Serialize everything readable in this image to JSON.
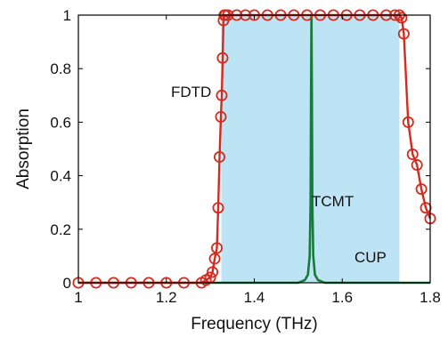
{
  "chart_data": {
    "type": "line",
    "xlabel": "Frequency (THz)",
    "ylabel": "Absorption",
    "xlim": [
      1.0,
      1.8
    ],
    "ylim": [
      0,
      1
    ],
    "x_ticks": [
      "1",
      "1.2",
      "1.4",
      "1.6",
      "1.8"
    ],
    "y_ticks": [
      "0",
      "0.2",
      "0.4",
      "0.6",
      "0.8",
      "1"
    ],
    "grid": false,
    "shaded_region": {
      "label": "CUP",
      "x_range": [
        1.325,
        1.73
      ],
      "color": "#bde4f4"
    },
    "annotations": {
      "fdtd": "FDTD",
      "tcmt": "TCMT",
      "cup": "CUP"
    },
    "series": [
      {
        "name": "FDTD",
        "style": "line+circle-markers",
        "color": "#d42a1f",
        "x": [
          1.0,
          1.04,
          1.08,
          1.12,
          1.16,
          1.2,
          1.24,
          1.28,
          1.29,
          1.3,
          1.305,
          1.31,
          1.315,
          1.318,
          1.321,
          1.324,
          1.326,
          1.328,
          1.33,
          1.332,
          1.334,
          1.34,
          1.36,
          1.38,
          1.4,
          1.43,
          1.46,
          1.49,
          1.52,
          1.55,
          1.58,
          1.61,
          1.64,
          1.67,
          1.7,
          1.72,
          1.73,
          1.735,
          1.74,
          1.75,
          1.76,
          1.77,
          1.78,
          1.79,
          1.8
        ],
        "y": [
          0.0,
          0.0,
          0.0,
          0.0,
          0.0,
          0.0,
          0.0,
          0.0,
          0.01,
          0.02,
          0.04,
          0.09,
          0.13,
          0.28,
          0.47,
          0.62,
          0.7,
          0.84,
          0.98,
          1.0,
          1.0,
          1.0,
          1.0,
          1.0,
          1.0,
          1.0,
          1.0,
          1.0,
          1.0,
          1.0,
          1.0,
          1.0,
          1.0,
          1.0,
          1.0,
          1.0,
          1.0,
          0.99,
          0.93,
          0.6,
          0.48,
          0.44,
          0.35,
          0.28,
          0.24
        ]
      },
      {
        "name": "TCMT",
        "style": "line",
        "color": "#157a3a",
        "x": [
          1.0,
          1.3,
          1.5,
          1.515,
          1.522,
          1.526,
          1.528,
          1.529,
          1.53,
          1.531,
          1.532,
          1.534,
          1.538,
          1.545,
          1.56,
          1.6,
          1.8
        ],
        "y": [
          0.0,
          0.0,
          0.0,
          0.01,
          0.03,
          0.1,
          0.3,
          0.7,
          1.0,
          0.7,
          0.3,
          0.1,
          0.03,
          0.01,
          0.0,
          0.0,
          0.0
        ]
      }
    ]
  }
}
